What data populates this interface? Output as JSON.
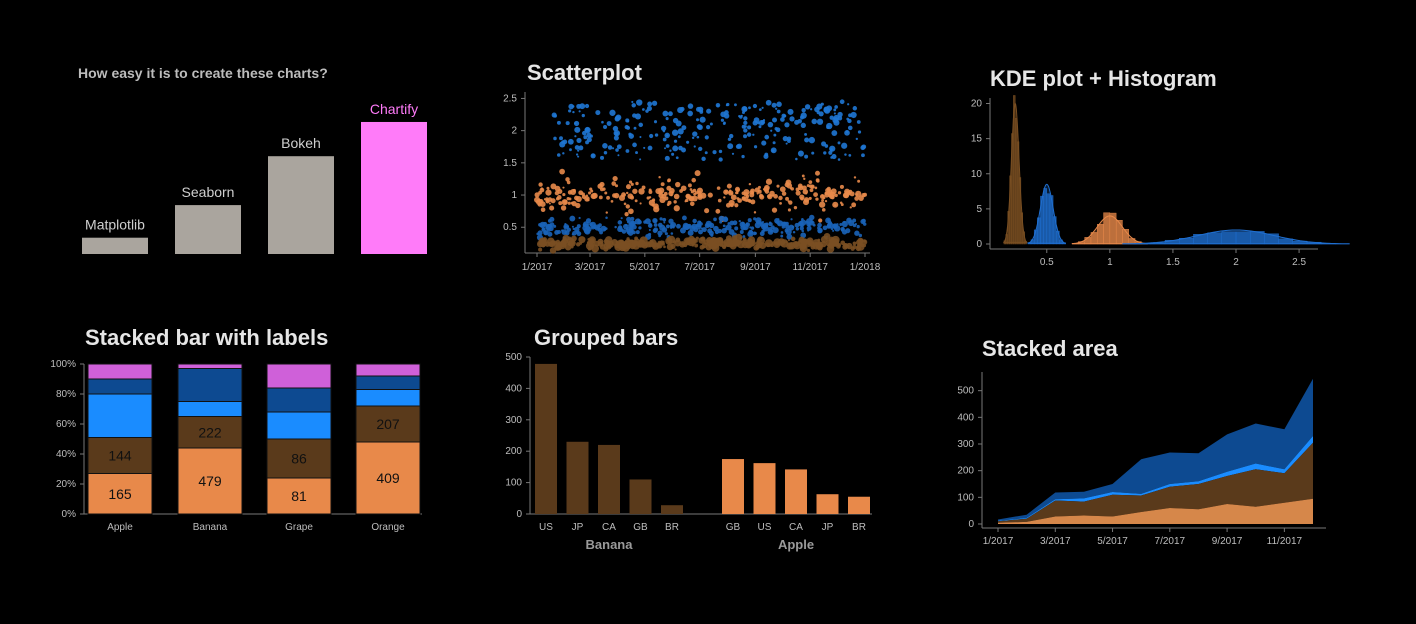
{
  "chart_data": [
    {
      "type": "bar",
      "title": "How easy it is to create these charts?",
      "categories": [
        "Matplotlib",
        "Seaborn",
        "Bokeh",
        "Chartify"
      ],
      "values": [
        1,
        3,
        6,
        8.1
      ],
      "colors": [
        "#aaa59e",
        "#aaa59e",
        "#aaa59e",
        "#ff7bf9"
      ],
      "axes_visible": false
    },
    {
      "type": "scatter",
      "title": "Scatterplot",
      "x_ticks": [
        "1/2017",
        "3/2017",
        "5/2017",
        "7/2017",
        "9/2017",
        "11/2017",
        "1/2018"
      ],
      "y_ticks": [
        "0.5",
        "1",
        "1.5",
        "2",
        "2.5"
      ],
      "ylim": [
        0.1,
        2.6
      ],
      "xlim": [
        "2017-01-01",
        "2018-01-01"
      ],
      "series": [
        {
          "color": "#1f77d4",
          "y_center": 2.0,
          "y_spread": 0.45
        },
        {
          "color": "#e8894a",
          "y_center": 1.0,
          "y_spread": 0.12
        },
        {
          "color": "#1a63b8",
          "y_center": 0.5,
          "y_spread": 0.07
        },
        {
          "color": "#7a4f22",
          "y_center": 0.25,
          "y_spread": 0.04
        }
      ]
    },
    {
      "type": "bar",
      "title": "KDE plot + Histogram",
      "x_ticks": [
        "0.5",
        "1",
        "1.5",
        "2",
        "2.5"
      ],
      "y_ticks": [
        "0",
        "5",
        "10",
        "15",
        "20"
      ],
      "xlim": [
        0.05,
        2.65
      ],
      "ylim": [
        0,
        20.5
      ],
      "series": [
        {
          "color": "#7a4f22",
          "center": 0.25,
          "sd": 0.03,
          "peak": 20
        },
        {
          "color": "#1f6fd1",
          "center": 0.5,
          "sd": 0.05,
          "peak": 8.5
        },
        {
          "color": "#e8894a",
          "center": 1.0,
          "sd": 0.1,
          "peak": 4
        },
        {
          "color": "#1f6fd1",
          "center": 2.0,
          "sd": 0.3,
          "peak": 2
        }
      ]
    },
    {
      "type": "bar",
      "title": "Stacked bar with labels",
      "categories": [
        "Apple",
        "Banana",
        "Grape",
        "Orange"
      ],
      "y_ticks": [
        "0%",
        "20%",
        "40%",
        "60%",
        "80%",
        "100%"
      ],
      "ylim": [
        0,
        1
      ],
      "segment_colors": [
        "#e8894a",
        "#5a3a1b",
        "#1a8cff",
        "#0d4a91",
        "#cf60d9"
      ],
      "segments": [
        [
          0.27,
          0.24,
          0.29,
          0.1,
          0.1
        ],
        [
          0.44,
          0.21,
          0.1,
          0.22,
          0.03
        ],
        [
          0.24,
          0.26,
          0.18,
          0.16,
          0.16
        ],
        [
          0.48,
          0.24,
          0.11,
          0.09,
          0.08
        ]
      ],
      "labels": [
        [
          "165",
          "144"
        ],
        [
          "479",
          "222"
        ],
        [
          "81",
          "86"
        ],
        [
          "409",
          "207"
        ]
      ]
    },
    {
      "type": "bar",
      "title": "Grouped bars",
      "y_ticks": [
        "0",
        "100",
        "200",
        "300",
        "400",
        "500"
      ],
      "ylim": [
        0,
        500
      ],
      "groups": [
        {
          "name": "Banana",
          "color": "#5a3a1b",
          "categories": [
            "US",
            "JP",
            "CA",
            "GB",
            "BR"
          ],
          "values": [
            478,
            230,
            220,
            110,
            28
          ]
        },
        {
          "name": "Apple",
          "color": "#e8894a",
          "categories": [
            "GB",
            "US",
            "CA",
            "JP",
            "BR"
          ],
          "values": [
            175,
            162,
            142,
            63,
            55
          ]
        }
      ]
    },
    {
      "type": "area",
      "title": "Stacked area",
      "x_ticks": [
        "1/2017",
        "3/2017",
        "5/2017",
        "7/2017",
        "9/2017",
        "11/2017"
      ],
      "y_ticks": [
        "0",
        "100",
        "200",
        "300",
        "400",
        "500"
      ],
      "ylim": [
        -15,
        570
      ],
      "x": [
        "2017-01",
        "2017-02",
        "2017-03",
        "2017-04",
        "2017-05",
        "2017-06",
        "2017-07",
        "2017-08",
        "2017-09",
        "2017-10",
        "2017-11",
        "2017-12"
      ],
      "series": [
        {
          "color": "#d6874a",
          "values": [
            5,
            8,
            28,
            32,
            28,
            45,
            60,
            55,
            75,
            65,
            80,
            95
          ]
        },
        {
          "color": "#5a3a1b",
          "values": [
            5,
            12,
            60,
            52,
            82,
            62,
            80,
            95,
            105,
            140,
            110,
            210
          ]
        },
        {
          "color": "#1a8cff",
          "values": [
            2,
            3,
            5,
            12,
            10,
            6,
            10,
            10,
            16,
            22,
            15,
            25
          ]
        },
        {
          "color": "#0d4a91",
          "values": [
            5,
            12,
            25,
            25,
            30,
            130,
            118,
            105,
            140,
            150,
            150,
            215
          ]
        }
      ]
    }
  ]
}
